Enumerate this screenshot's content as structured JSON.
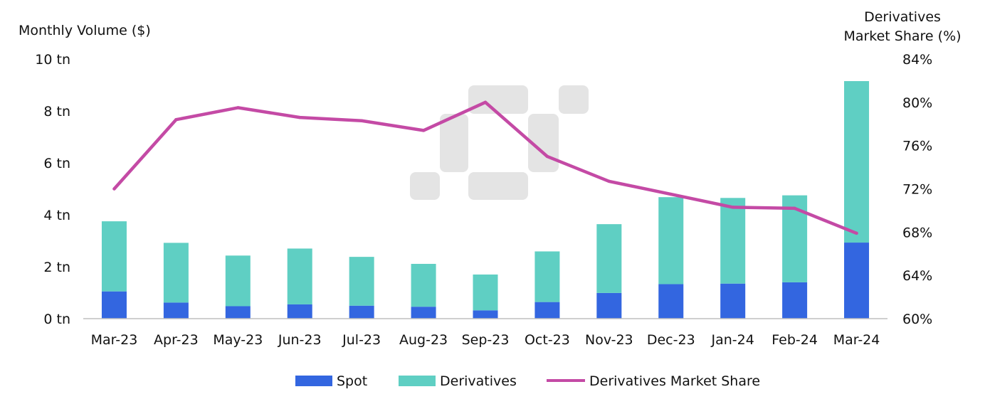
{
  "chart_data": {
    "type": "bar",
    "stacked": true,
    "left_axis_title": "Monthly Volume ($)",
    "right_axis_title_lines": [
      "Derivatives",
      "Market Share (%)"
    ],
    "left_ticks": [
      "0 tn",
      "2 tn",
      "4 tn",
      "6 tn",
      "8 tn",
      "10 tn"
    ],
    "right_ticks": [
      "60%",
      "64%",
      "68%",
      "72%",
      "76%",
      "80%",
      "84%"
    ],
    "left_ylim": [
      0,
      10
    ],
    "right_ylim": [
      60,
      84
    ],
    "categories": [
      "Mar-23",
      "Apr-23",
      "May-23",
      "Jun-23",
      "Jul-23",
      "Aug-23",
      "Sep-23",
      "Oct-23",
      "Nov-23",
      "Dec-23",
      "Jan-24",
      "Feb-24",
      "Mar-24"
    ],
    "series": [
      {
        "name": "Spot",
        "kind": "bar",
        "axis": "left",
        "color": "#3366e0",
        "values": [
          1.05,
          0.62,
          0.48,
          0.55,
          0.5,
          0.46,
          0.32,
          0.64,
          0.99,
          1.33,
          1.35,
          1.4,
          2.93
        ]
      },
      {
        "name": "Derivatives",
        "kind": "bar",
        "axis": "left",
        "color": "#5fcfc3",
        "values": [
          2.7,
          2.3,
          1.95,
          2.15,
          1.88,
          1.65,
          1.38,
          1.95,
          2.65,
          3.35,
          3.3,
          3.35,
          6.22
        ]
      },
      {
        "name": "Derivatives Market Share",
        "kind": "line",
        "axis": "right",
        "color": "#c44aa5",
        "values": [
          72.0,
          78.4,
          79.5,
          78.6,
          78.3,
          77.4,
          80.0,
          75.0,
          72.7,
          71.5,
          70.3,
          70.2,
          67.9
        ]
      }
    ],
    "legend": {
      "placement": "bottom",
      "items": [
        "Spot",
        "Derivatives",
        "Derivatives Market Share"
      ]
    },
    "grid": false
  }
}
